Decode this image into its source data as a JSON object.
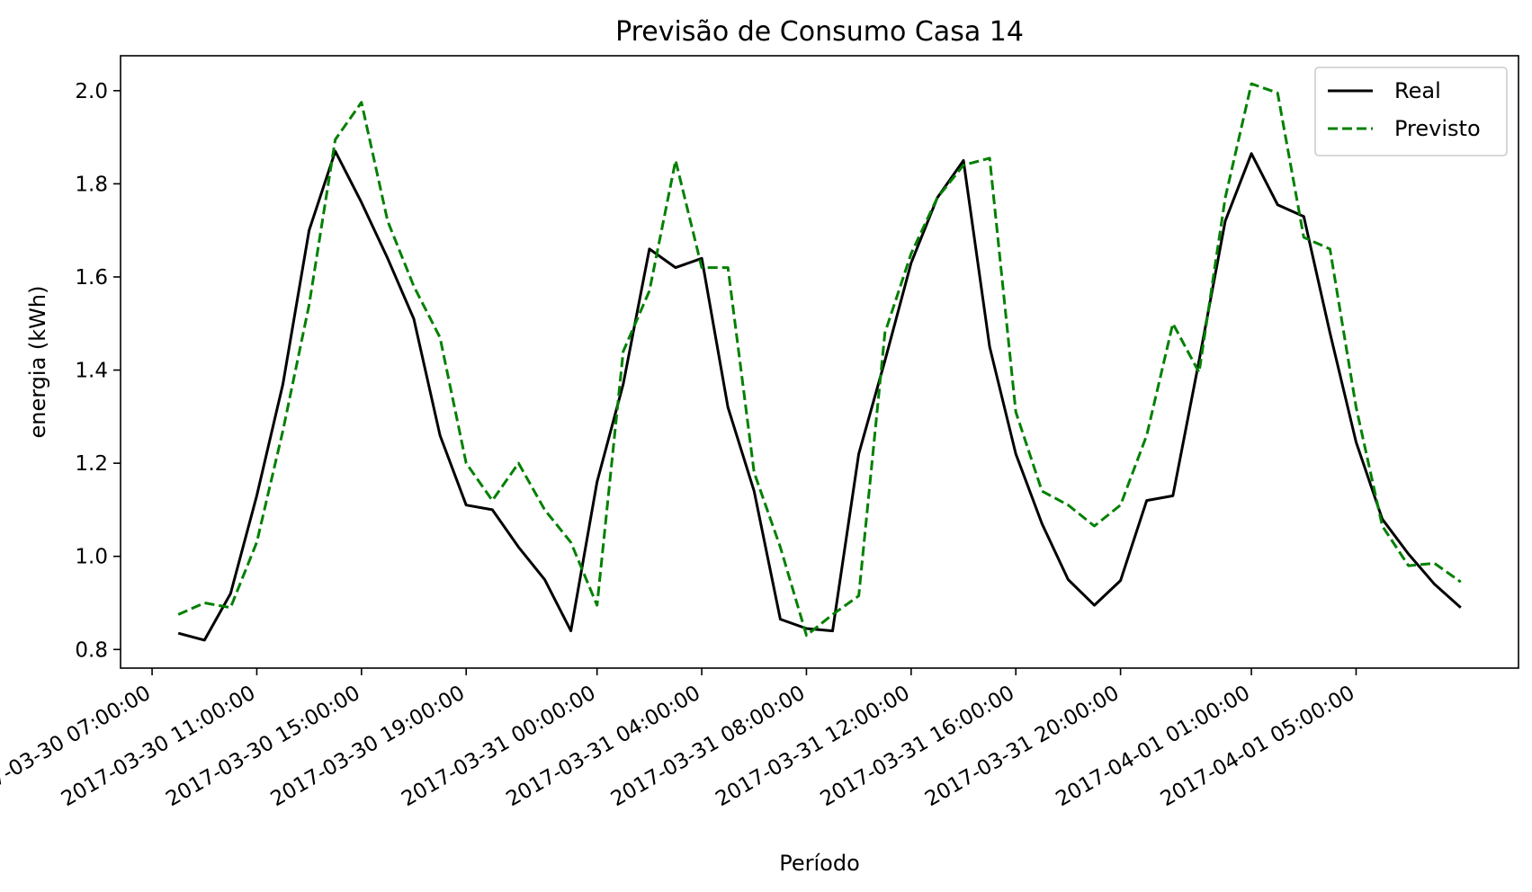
{
  "chart_data": {
    "type": "line",
    "title": "Previsão de Consumo Casa 14",
    "xlabel": "Período",
    "ylabel": "energia (kWh)",
    "ylim": [
      0.76,
      2.075
    ],
    "yticks": [
      "0.8",
      "1.0",
      "1.2",
      "1.4",
      "1.6",
      "1.8",
      "2.0"
    ],
    "xticks": [
      "2017-03-30 07:00:00",
      "2017-03-30 11:00:00",
      "2017-03-30 15:00:00",
      "2017-03-30 19:00:00",
      "2017-03-31 00:00:00",
      "2017-03-31 04:00:00",
      "2017-03-31 08:00:00",
      "2017-03-31 12:00:00",
      "2017-03-31 16:00:00",
      "2017-03-31 20:00:00",
      "2017-04-01 01:00:00",
      "2017-04-01 05:00:00"
    ],
    "legend": {
      "position": "top-right"
    },
    "grid": false,
    "x": [
      "2017-03-30 08:00",
      "2017-03-30 09:00",
      "2017-03-30 10:00",
      "2017-03-30 11:00",
      "2017-03-30 12:00",
      "2017-03-30 13:00",
      "2017-03-30 14:00",
      "2017-03-30 15:00",
      "2017-03-30 16:00",
      "2017-03-30 17:00",
      "2017-03-30 18:00",
      "2017-03-30 19:00",
      "2017-03-30 20:00",
      "2017-03-30 21:00",
      "2017-03-30 22:00",
      "2017-03-30 23:00",
      "2017-03-31 00:00",
      "2017-03-31 01:00",
      "2017-03-31 02:00",
      "2017-03-31 03:00",
      "2017-03-31 04:00",
      "2017-03-31 05:00",
      "2017-03-31 06:00",
      "2017-03-31 07:00",
      "2017-03-31 08:00",
      "2017-03-31 09:00",
      "2017-03-31 10:00",
      "2017-03-31 11:00",
      "2017-03-31 12:00",
      "2017-03-31 13:00",
      "2017-03-31 14:00",
      "2017-03-31 15:00",
      "2017-03-31 16:00",
      "2017-03-31 17:00",
      "2017-03-31 18:00",
      "2017-03-31 19:00",
      "2017-03-31 20:00",
      "2017-03-31 21:00",
      "2017-03-31 22:00",
      "2017-03-31 23:00",
      "2017-04-01 00:00",
      "2017-04-01 01:00",
      "2017-04-01 02:00",
      "2017-04-01 03:00",
      "2017-04-01 04:00",
      "2017-04-01 05:00",
      "2017-04-01 06:00",
      "2017-04-01 07:00",
      "2017-04-01 08:00",
      "2017-04-01 09:00"
    ],
    "series": [
      {
        "name": "Real",
        "color": "#000000",
        "style": "solid",
        "values": [
          0.835,
          0.82,
          0.92,
          1.13,
          1.37,
          1.7,
          1.87,
          1.76,
          1.64,
          1.51,
          1.26,
          1.11,
          1.1,
          1.02,
          0.95,
          0.84,
          1.16,
          1.37,
          1.66,
          1.62,
          1.64,
          1.32,
          1.14,
          0.865,
          0.845,
          0.84,
          1.22,
          1.42,
          1.63,
          1.77,
          1.85,
          1.45,
          1.22,
          1.07,
          0.95,
          0.895,
          0.948,
          1.12,
          1.13,
          1.42,
          1.72,
          1.865,
          1.755,
          1.73,
          1.48,
          1.245,
          1.08,
          1.005,
          0.94,
          0.89
        ]
      },
      {
        "name": "Previsto",
        "color": "#008000",
        "style": "dashed",
        "values": [
          0.875,
          0.9,
          0.89,
          1.03,
          1.27,
          1.54,
          1.895,
          1.975,
          1.72,
          1.58,
          1.47,
          1.2,
          1.12,
          1.2,
          1.1,
          1.03,
          0.895,
          1.44,
          1.57,
          1.85,
          1.62,
          1.62,
          1.18,
          1.02,
          0.83,
          0.875,
          0.915,
          1.48,
          1.65,
          1.77,
          1.84,
          1.855,
          1.31,
          1.14,
          1.11,
          1.065,
          1.11,
          1.26,
          1.5,
          1.395,
          1.77,
          2.015,
          1.995,
          1.685,
          1.66,
          1.32,
          1.065,
          0.98,
          0.985,
          0.945
        ]
      }
    ]
  }
}
